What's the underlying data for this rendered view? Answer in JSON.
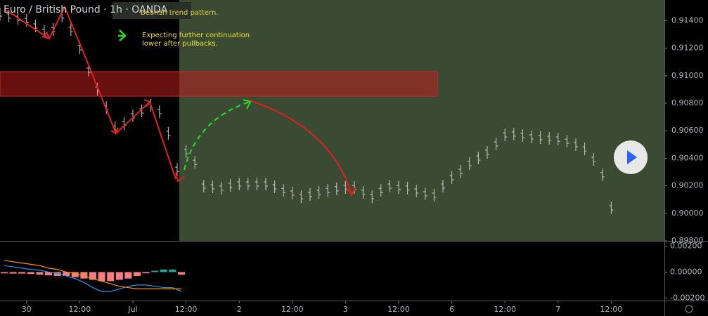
{
  "chart_data": [
    {
      "type": "price",
      "title": "Euro / British Pound · 1h · OANDA",
      "annotations": [
        "Bearish trend pattern.",
        "Expecting further continuation",
        "lower after pullbacks."
      ],
      "x": [
        0,
        2,
        4,
        6,
        8,
        10,
        12,
        14,
        16,
        18,
        20,
        22,
        24,
        26,
        28,
        30,
        32,
        34,
        36,
        38,
        40,
        42,
        44,
        46,
        48,
        50,
        52,
        54,
        56,
        58,
        60,
        62,
        64,
        66,
        68,
        70,
        72,
        74,
        76,
        78,
        80,
        82,
        84,
        86,
        88,
        90,
        92,
        94,
        96,
        98,
        100,
        102,
        104,
        106,
        108,
        110,
        112,
        114,
        116,
        118,
        120,
        122,
        124,
        126,
        128,
        130,
        132,
        134,
        136,
        138
      ],
      "values": [
        0.91448,
        0.91433,
        0.91417,
        0.91402,
        0.91361,
        0.9132,
        0.91336,
        0.91433,
        0.91336,
        0.91203,
        0.9104,
        0.90902,
        0.90769,
        0.90621,
        0.90652,
        0.90708,
        0.90744,
        0.90785,
        0.90739,
        0.90581,
        0.9032,
        0.90448,
        0.90371,
        0.90198,
        0.90193,
        0.90183,
        0.90203,
        0.90213,
        0.90213,
        0.90213,
        0.90213,
        0.90193,
        0.90167,
        0.90147,
        0.90121,
        0.90137,
        0.90152,
        0.90167,
        0.90178,
        0.90188,
        0.90188,
        0.90152,
        0.90121,
        0.90167,
        0.90198,
        0.90188,
        0.90183,
        0.90162,
        0.90142,
        0.90132,
        0.90198,
        0.90259,
        0.90305,
        0.90361,
        0.90402,
        0.90443,
        0.90504,
        0.9057,
        0.90576,
        0.90565,
        0.90555,
        0.9055,
        0.90545,
        0.9054,
        0.90524,
        0.90499,
        0.90468,
        0.90392,
        0.9028,
        0.9004
      ],
      "color": "#c8c8c8",
      "xlim": [
        0,
        150
      ],
      "ylim": [
        0.898,
        0.9155
      ],
      "yticks": [
        {
          "value": 0.914,
          "label": "0.91400"
        },
        {
          "value": 0.912,
          "label": "0.91200"
        },
        {
          "value": 0.91,
          "label": "0.91000"
        },
        {
          "value": 0.908,
          "label": "0.90800"
        },
        {
          "value": 0.906,
          "label": "0.90600"
        },
        {
          "value": 0.904,
          "label": "0.90400"
        },
        {
          "value": 0.902,
          "label": "0.90200"
        },
        {
          "value": 0.9,
          "label": "0.90000"
        },
        {
          "value": 0.898,
          "label": "0.89800"
        }
      ],
      "xticks": [
        {
          "value": 6,
          "label": "30"
        },
        {
          "value": 18,
          "label": "12:00"
        },
        {
          "value": 30,
          "label": "Jul"
        },
        {
          "value": 42,
          "label": "12:00"
        },
        {
          "value": 54,
          "label": "2"
        },
        {
          "value": 66,
          "label": "12:00"
        },
        {
          "value": 78,
          "label": "3"
        },
        {
          "value": 90,
          "label": "12:00"
        },
        {
          "value": 102,
          "label": "6"
        },
        {
          "value": 114,
          "label": "12:00"
        },
        {
          "value": 126,
          "label": "7"
        },
        {
          "value": 138,
          "label": "12:00"
        }
      ]
    },
    {
      "type": "macd",
      "x": [
        0,
        2,
        4,
        6,
        8,
        10,
        12,
        14,
        16,
        18,
        20,
        22,
        24,
        26,
        28,
        30,
        32,
        34,
        36,
        38,
        40
      ],
      "values": [
        -0.0001,
        -0.00012,
        -0.00012,
        -0.00015,
        -0.0002,
        -0.00025,
        -0.0003,
        -0.0003,
        -0.0004,
        -0.0005,
        -0.0006,
        -0.0007,
        -0.0007,
        -0.0006,
        -0.0005,
        -0.0003,
        -0.0001,
        0.0001,
        0.0002,
        0.0002,
        -0.0002
      ],
      "colors": {
        "negative": "#f77c80",
        "positive": "#26a69a"
      },
      "series": [
        {
          "color": "#2196f3",
          "values": [
            0.0005,
            0.0004,
            0.0003,
            0.0002,
            0.00015,
            0,
            -0.0001,
            -0.0003,
            -0.0005,
            -0.0008,
            -0.0012,
            -0.0015,
            -0.0015,
            -0.0013,
            -0.0011,
            -0.001,
            -0.001,
            -0.0011,
            -0.0012,
            -0.0012,
            -0.0015
          ]
        },
        {
          "color": "#ff9800",
          "values": [
            0.0009,
            0.0008,
            0.0007,
            0.0006,
            0.0005,
            0.0003,
            0.0002,
            0,
            -0.0001,
            -0.0003,
            -0.0005,
            -0.0007,
            -0.0009,
            -0.0011,
            -0.0012,
            -0.0013,
            -0.0013,
            -0.0013,
            -0.0013,
            -0.0013,
            -0.0013
          ]
        }
      ],
      "ylim": [
        -0.0022,
        0.0023
      ],
      "yticks": [
        {
          "value": 0.002,
          "label": "0.00200"
        },
        {
          "value": 0,
          "label": "0.00000"
        },
        {
          "value": -0.002,
          "label": "-0.00200"
        }
      ]
    }
  ]
}
